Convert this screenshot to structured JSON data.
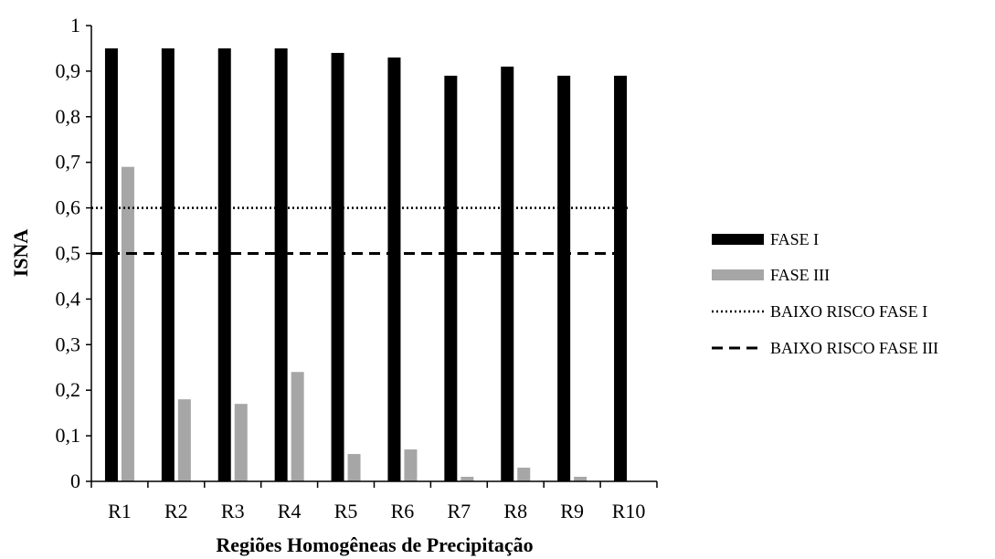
{
  "chart_data": {
    "type": "bar",
    "xlabel": "Regiões Homogêneas de Precipitação",
    "ylabel": "ISNA",
    "ylim": [
      0,
      1
    ],
    "yticks": [
      "0",
      "0,1",
      "0,2",
      "0,3",
      "0,4",
      "0,5",
      "0,6",
      "0,7",
      "0,8",
      "0,9",
      "1"
    ],
    "categories": [
      "R1",
      "R2",
      "R3",
      "R4",
      "R5",
      "R6",
      "R7",
      "R8",
      "R9",
      "R10"
    ],
    "series": [
      {
        "name": "FASE I",
        "type": "bar",
        "color": "#000000",
        "values": [
          0.95,
          0.95,
          0.95,
          0.95,
          0.94,
          0.93,
          0.89,
          0.91,
          0.89,
          0.89
        ]
      },
      {
        "name": "FASE III",
        "type": "bar",
        "color": "#a6a6a6",
        "values": [
          0.69,
          0.18,
          0.17,
          0.24,
          0.06,
          0.07,
          0.01,
          0.03,
          0.01,
          0
        ]
      }
    ],
    "reference_lines": [
      {
        "name": "BAIXO RISCO FASE I",
        "value": 0.6,
        "style": "dotted",
        "color": "#000000"
      },
      {
        "name": "BAIXO RISCO FASE III",
        "value": 0.5,
        "style": "dashed",
        "color": "#000000"
      }
    ],
    "grid": false,
    "legend_position": "right"
  }
}
